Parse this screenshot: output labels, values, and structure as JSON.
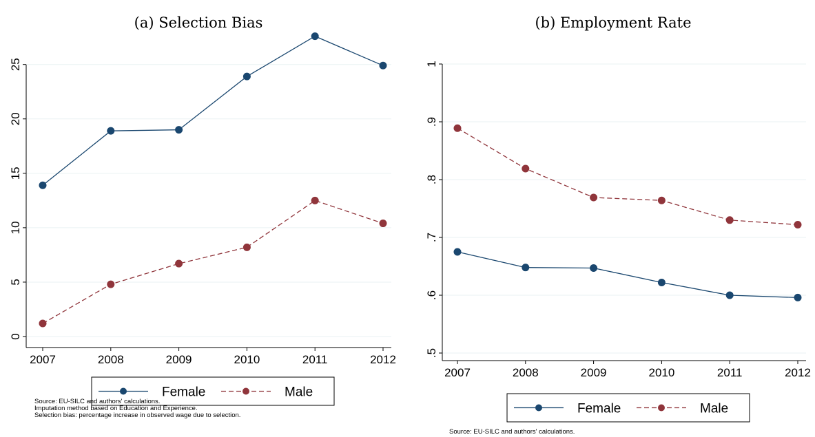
{
  "chart_data": [
    {
      "type": "line",
      "title": "(a) Selection Bias",
      "xlabel": "",
      "ylabel": "",
      "x": [
        2007,
        2008,
        2009,
        2010,
        2011,
        2012
      ],
      "xlim": [
        2007,
        2012
      ],
      "ylim": [
        0,
        28
      ],
      "y_ticks": [
        "0",
        "5",
        "10",
        "15",
        "20",
        "25"
      ],
      "y_tick_values": [
        0,
        5,
        10,
        15,
        20,
        25
      ],
      "x_ticks": [
        "2007",
        "2008",
        "2009",
        "2010",
        "2011",
        "2012"
      ],
      "grid": true,
      "legend": "bottom",
      "series": [
        {
          "name": "Female",
          "values": [
            13.9,
            18.9,
            19.0,
            23.9,
            27.6,
            24.9
          ],
          "color": "#1a476f",
          "dash": "solid"
        },
        {
          "name": "Male",
          "values": [
            1.2,
            4.8,
            6.7,
            8.2,
            12.5,
            10.4
          ],
          "color": "#90353b",
          "dash": "dashed"
        }
      ],
      "notes": [
        "Source: EU-SILC and authors' calculations.",
        "Imputation method based on Education and Experience.",
        "Selection bias: percentage increase in observed wage due to selection."
      ]
    },
    {
      "type": "line",
      "title": "(b) Employment Rate",
      "xlabel": "",
      "ylabel": "",
      "x": [
        2007,
        2008,
        2009,
        2010,
        2011,
        2012
      ],
      "xlim": [
        2007,
        2012
      ],
      "ylim": [
        0.5,
        1.0
      ],
      "y_ticks": [
        ".5",
        ".6",
        ".7",
        ".8",
        ".9",
        "1"
      ],
      "y_tick_values": [
        0.5,
        0.6,
        0.7,
        0.8,
        0.9,
        1.0
      ],
      "x_ticks": [
        "2007",
        "2008",
        "2009",
        "2010",
        "2011",
        "2012"
      ],
      "grid": true,
      "legend": "bottom",
      "series": [
        {
          "name": "Female",
          "values": [
            0.675,
            0.648,
            0.647,
            0.622,
            0.6,
            0.596
          ],
          "color": "#1a476f",
          "dash": "solid"
        },
        {
          "name": "Male",
          "values": [
            0.889,
            0.819,
            0.769,
            0.764,
            0.73,
            0.722
          ],
          "color": "#90353b",
          "dash": "dashed"
        }
      ],
      "notes": [
        "Source: EU-SILC and authors' calculations."
      ]
    }
  ]
}
